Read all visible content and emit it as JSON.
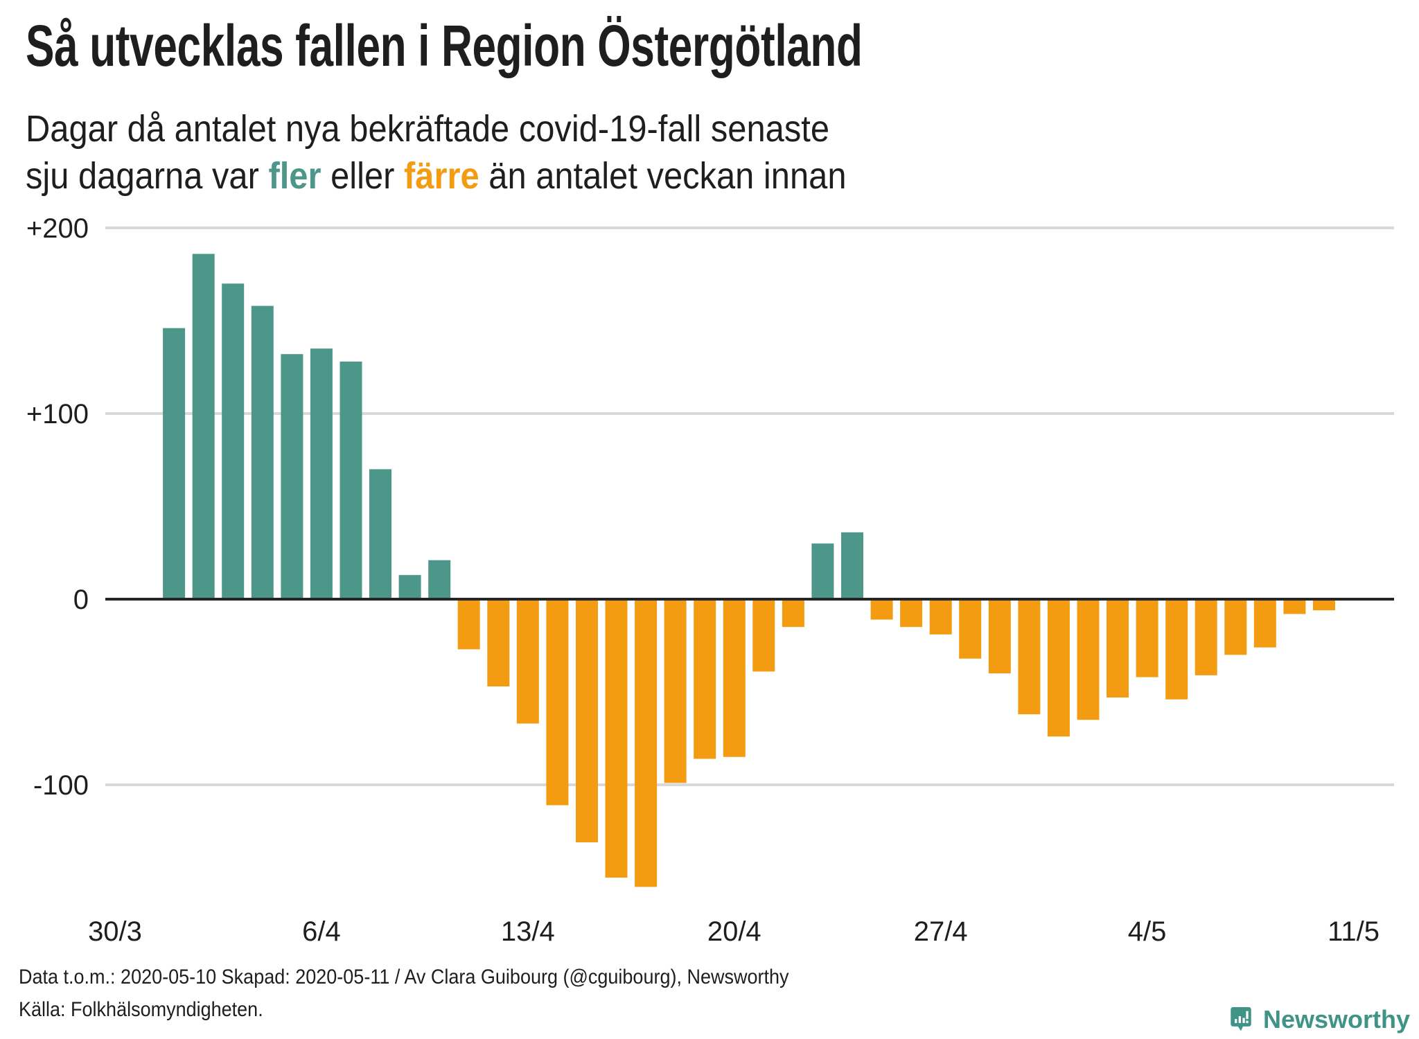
{
  "header": {
    "title": "Så utvecklas fallen i Region Östergötland",
    "subtitle_line1": "Dagar då antalet nya bekräftade covid-19-fall senaste",
    "subtitle_line2_pre": "sju dagarna var ",
    "subtitle_more": "fler",
    "subtitle_mid": " eller ",
    "subtitle_less": "färre",
    "subtitle_line2_post": " än antalet veckan innan"
  },
  "colors": {
    "positive": "#4c968a",
    "negative": "#f39c12",
    "gridline": "#d9d9d9",
    "zero_line": "#262626",
    "text": "#1e1e1e",
    "brand": "#3f9487"
  },
  "chart_data": {
    "type": "bar",
    "title": "Så utvecklas fallen i Region Östergötland",
    "subtitle": "Dagar då antalet nya bekräftade covid-19-fall senaste sju dagarna var fler eller färre än antalet veckan innan",
    "xlabel": "",
    "ylabel": "",
    "ylim": [
      -160,
      200
    ],
    "yticks": [
      {
        "value": 200,
        "label": "+200"
      },
      {
        "value": 100,
        "label": "+100"
      },
      {
        "value": 0,
        "label": "0"
      },
      {
        "value": -100,
        "label": "-100"
      }
    ],
    "grid": true,
    "x_start_date": "30/3",
    "xticks": [
      {
        "day_index": 0,
        "label": "30/3"
      },
      {
        "day_index": 7,
        "label": "6/4"
      },
      {
        "day_index": 14,
        "label": "13/4"
      },
      {
        "day_index": 21,
        "label": "20/4"
      },
      {
        "day_index": 28,
        "label": "27/4"
      },
      {
        "day_index": 35,
        "label": "4/5"
      },
      {
        "day_index": 42,
        "label": "11/5"
      }
    ],
    "x_domain_days": [
      0,
      42
    ],
    "first_bar_day_index": 2,
    "categories": [
      "1/4",
      "2/4",
      "3/4",
      "4/4",
      "5/4",
      "6/4",
      "7/4",
      "8/4",
      "9/4",
      "10/4",
      "11/4",
      "12/4",
      "13/4",
      "14/4",
      "15/4",
      "16/4",
      "17/4",
      "18/4",
      "19/4",
      "20/4",
      "21/4",
      "22/4",
      "23/4",
      "24/4",
      "25/4",
      "26/4",
      "27/4",
      "28/4",
      "29/4",
      "30/4",
      "1/5",
      "2/5",
      "3/5",
      "4/5",
      "5/5",
      "6/5",
      "7/5",
      "8/5",
      "9/5",
      "10/5"
    ],
    "values": [
      146,
      186,
      170,
      158,
      132,
      135,
      128,
      70,
      13,
      21,
      -27,
      -47,
      -67,
      -111,
      -131,
      -150,
      -155,
      -99,
      -86,
      -85,
      -39,
      -15,
      30,
      36,
      -11,
      -15,
      -19,
      -32,
      -40,
      -62,
      -74,
      -65,
      -53,
      -42,
      -54,
      -41,
      -30,
      -26,
      -8,
      -6
    ],
    "legend": [
      {
        "label": "fler",
        "color": "#4c968a"
      },
      {
        "label": "färre",
        "color": "#f39c12"
      }
    ]
  },
  "footer": {
    "line1": "Data t.o.m.: 2020-05-10 Skapad: 2020-05-11 / Av Clara Guibourg (@cguibourg), Newsworthy",
    "line2": "Källa: Folkhälsomyndigheten."
  },
  "logo": {
    "icon": "newsworthy-chart-bubble-icon",
    "text": "Newsworthy"
  }
}
